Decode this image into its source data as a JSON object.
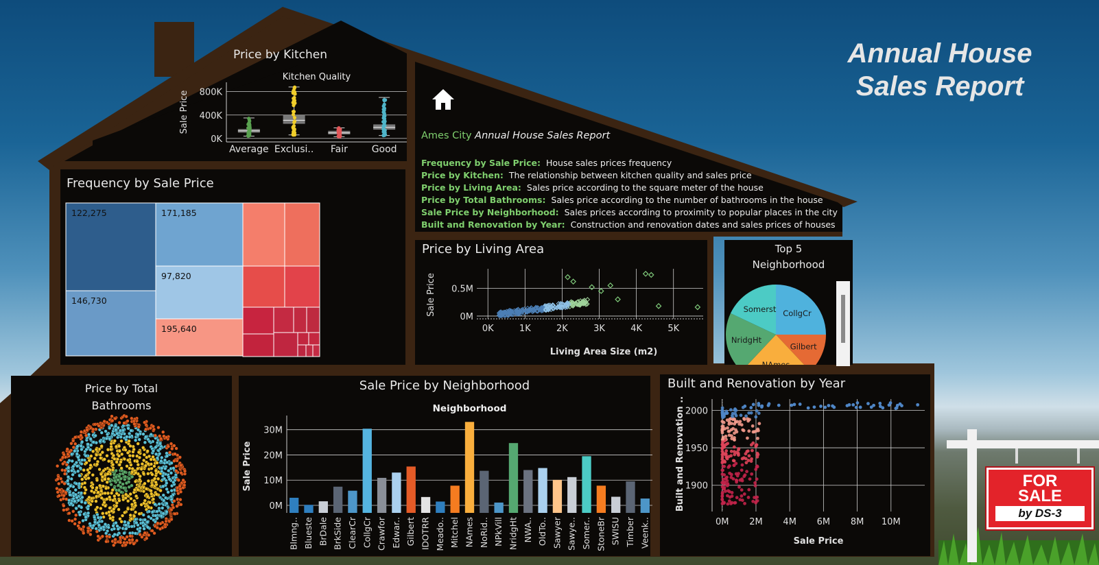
{
  "report_title": "Annual House Sales Report",
  "report_title_lines": [
    "Annual House",
    "Sales Report"
  ],
  "info": {
    "city": "Ames City",
    "subtitle": "Annual House Sales Report",
    "items": [
      {
        "key": "Frequency by Sale Price:",
        "text": "House sales prices frequency"
      },
      {
        "key": "Price by Kitchen:",
        "text": "The relationship between kitchen quality and sales price"
      },
      {
        "key": "Price by Living Area:",
        "text": "Sales price according to the square meter of the house"
      },
      {
        "key": "Price by Total Bathrooms:",
        "text": "Sales price according to the number of bathrooms in the house"
      },
      {
        "key": "Sale Price by Neighborhood:",
        "text": "Sales prices according to proximity to popular places in the city"
      },
      {
        "key": "Built and Renovation by Year:",
        "text": "Construction and renovation dates and sales prices of houses"
      }
    ]
  },
  "sign": {
    "line1": "FOR",
    "line2": "SALE",
    "line3": "by DS-3"
  },
  "colors": {
    "green_key": "#7fcf6e",
    "sign_red": "#e3232a",
    "roof": "#3b2412",
    "panel": "#0b0907"
  },
  "chart_data": [
    {
      "id": "kitchen",
      "type": "box",
      "title": "Price by Kitchen",
      "header": "Kitchen Quality",
      "ylabel": "Sale Price",
      "yticks": [
        "800K",
        "400K",
        "0K"
      ],
      "ytick_values": [
        800000,
        400000,
        0
      ],
      "ylim": [
        -60000,
        960000
      ],
      "categories": [
        "Average",
        "Exclusi..",
        "Fair",
        "Good"
      ],
      "colors": [
        "#59a14f",
        "#f1ce2b",
        "#e15759",
        "#4fb5c9"
      ],
      "boxes": [
        {
          "min": 40000,
          "q1": 100000,
          "median": 130000,
          "q3": 160000,
          "max": 350000
        },
        {
          "min": 60000,
          "q1": 250000,
          "median": 310000,
          "q3": 400000,
          "max": 880000
        },
        {
          "min": 30000,
          "q1": 70000,
          "median": 95000,
          "q3": 130000,
          "max": 180000
        },
        {
          "min": 50000,
          "q1": 150000,
          "median": 190000,
          "q3": 240000,
          "max": 700000
        }
      ]
    },
    {
      "id": "frequency",
      "type": "treemap",
      "title": "Frequency by Sale Price",
      "labels": [
        "122,275",
        "171,185",
        "97,820",
        "146,730",
        "195,640"
      ]
    },
    {
      "id": "living",
      "type": "scatter",
      "title": "Price by Living Area",
      "xlabel": "Living Area Size (m2)",
      "ylabel": "Sale Price",
      "xticks": [
        "0K",
        "1K",
        "2K",
        "3K",
        "4K",
        "5K"
      ],
      "xtick_values": [
        0,
        1000,
        2000,
        3000,
        4000,
        5000
      ],
      "yticks": [
        "0.5M",
        "0M"
      ],
      "ytick_values": [
        500000,
        0
      ],
      "xlim": [
        -300,
        5800
      ],
      "ylim": [
        -50000,
        850000
      ],
      "outliers": [
        {
          "x": 2150,
          "y": 700000
        },
        {
          "x": 2300,
          "y": 620000
        },
        {
          "x": 2800,
          "y": 520000
        },
        {
          "x": 3050,
          "y": 450000
        },
        {
          "x": 3300,
          "y": 550000
        },
        {
          "x": 3500,
          "y": 300000
        },
        {
          "x": 4250,
          "y": 760000
        },
        {
          "x": 4400,
          "y": 740000
        },
        {
          "x": 4600,
          "y": 180000
        },
        {
          "x": 5650,
          "y": 160000
        }
      ]
    },
    {
      "id": "top5",
      "type": "pie",
      "title": "Top 5 Neighborhood",
      "title_lines": [
        "Top 5",
        "Neighborhood"
      ],
      "labels": [
        "CollgCr",
        "Gilbert",
        "NAmes",
        "NridgHt",
        "Somerst"
      ],
      "values": [
        25,
        13,
        24,
        20,
        18
      ],
      "colors": [
        "#4fb2dd",
        "#e56a34",
        "#f9ae3d",
        "#55a871",
        "#4ccbc5"
      ]
    },
    {
      "id": "bathrooms",
      "type": "packed_bubbles",
      "title": "Price by Total Bathrooms",
      "title_lines": [
        "Price by Total",
        "Bathrooms"
      ],
      "colors": [
        "#e25c1f",
        "#5bc2d8",
        "#f0c22a",
        "#5aa768"
      ]
    },
    {
      "id": "neighborhood",
      "type": "bar",
      "title": "Sale Price by Neighborhood",
      "header": "Neighborhood",
      "ylabel": "Sale Price",
      "yticks": [
        "30M",
        "20M",
        "10M",
        "0M"
      ],
      "ytick_values": [
        30000000,
        20000000,
        10000000,
        0
      ],
      "ylim": [
        -3000000,
        34000000
      ],
      "categories": [
        "Blmng..",
        "Blueste",
        "BrDale",
        "BrkSide",
        "ClearCr",
        "CollgCr",
        "Crawfor",
        "Edwar..",
        "Gilbert",
        "IDOTRR",
        "Meado..",
        "Mitchel",
        "NAmes",
        "NoRid..",
        "NPkVill",
        "NridgHt",
        "NWA..",
        "OldTo..",
        "Sawyer",
        "Sawye..",
        "Somer..",
        "StoneBr",
        "SWISU",
        "Timber",
        "Veenk.."
      ],
      "values": [
        3000000,
        200000,
        1600000,
        7400000,
        5800000,
        30400000,
        10900000,
        13000000,
        15400000,
        3300000,
        1500000,
        7800000,
        33100000,
        13700000,
        1100000,
        24700000,
        14000000,
        14800000,
        10100000,
        11200000,
        19500000,
        7800000,
        3400000,
        9500000,
        2700000
      ],
      "colors": [
        "#2f7fbf",
        "#2f7fbf",
        "#c9ced6",
        "#5b6574",
        "#4d96c8",
        "#55b4e0",
        "#8a8f98",
        "#aad0ee",
        "#e45b27",
        "#e3e3e3",
        "#2f7fbf",
        "#f57c20",
        "#f9ae3d",
        "#5b6574",
        "#4d96c8",
        "#55a871",
        "#6b7280",
        "#aad0ee",
        "#ffc58a",
        "#c9ced6",
        "#4ccbc5",
        "#f57c20",
        "#c9ced6",
        "#5b6574",
        "#4d96c8"
      ]
    },
    {
      "id": "built",
      "type": "scatter",
      "title": "Built and Renovation by Year",
      "xlabel": "Sale Price",
      "ylabel": "Built and Renovation ..",
      "xticks": [
        "0M",
        "2M",
        "4M",
        "6M",
        "8M",
        "10M"
      ],
      "xtick_values": [
        0,
        2,
        4,
        6,
        8,
        10
      ],
      "yticks": [
        "2000",
        "1950",
        "1900"
      ],
      "ytick_values": [
        2000,
        1950,
        1900
      ],
      "xlim": [
        -0.6,
        12
      ],
      "ylim": [
        1865,
        2015
      ]
    }
  ]
}
